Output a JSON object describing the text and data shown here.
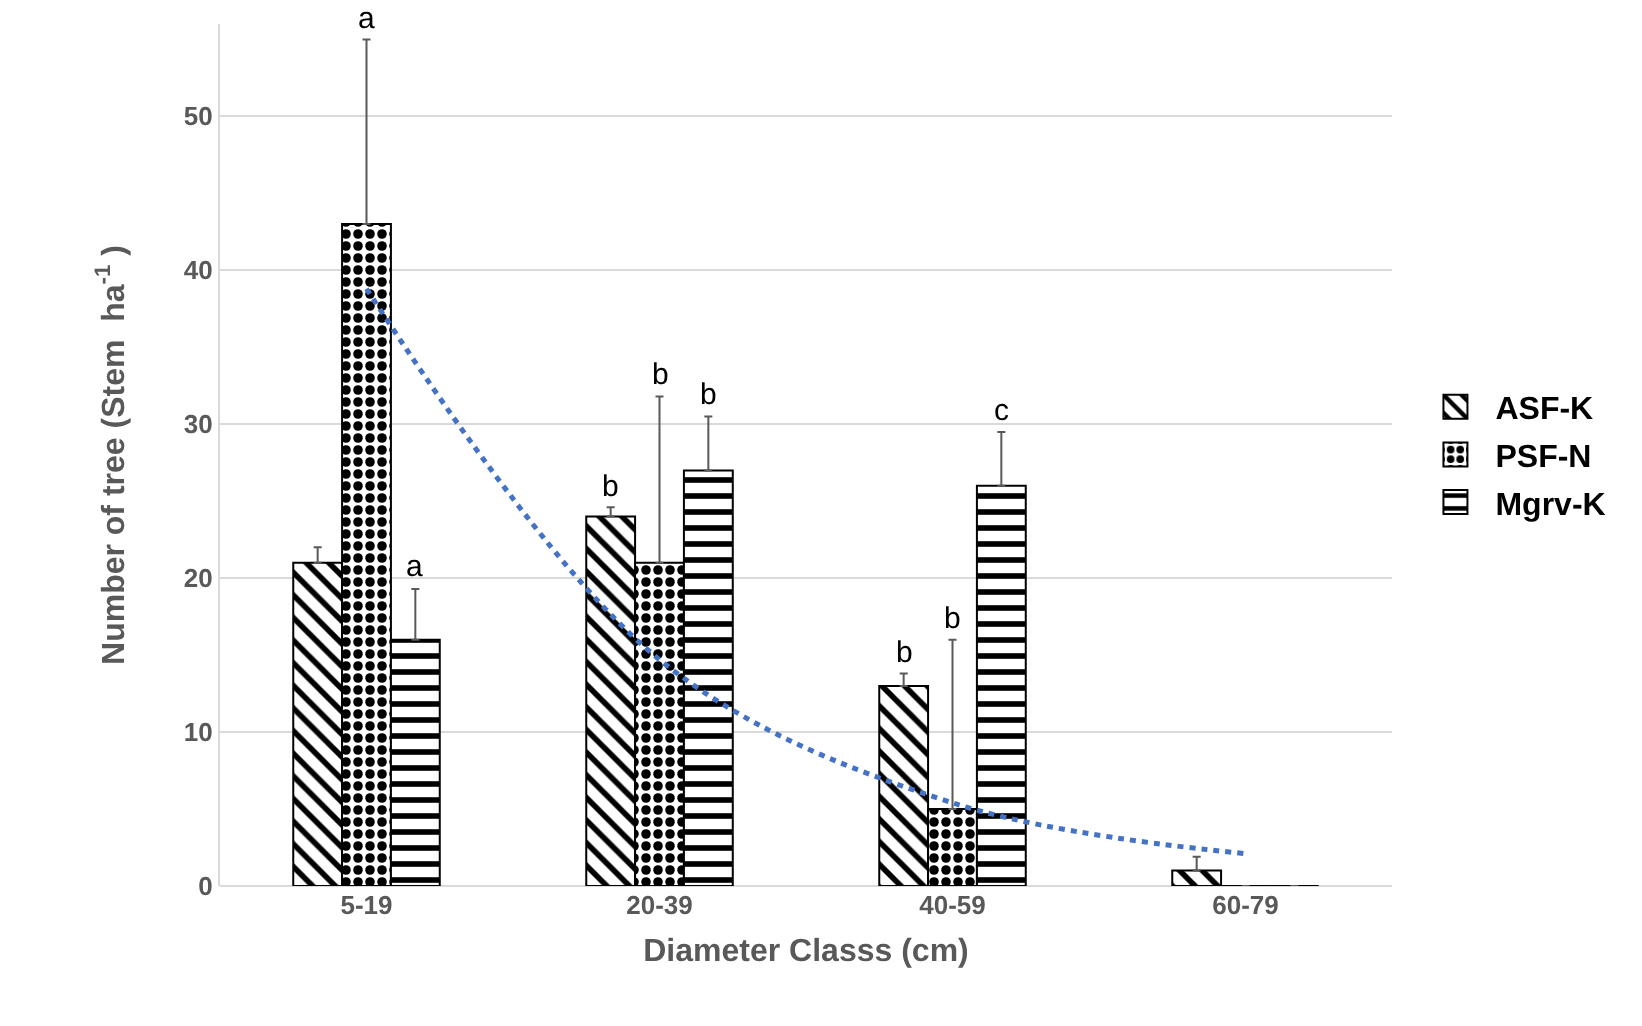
{
  "chart_data": {
    "type": "bar",
    "xlabel": "Diameter Classs (cm)",
    "ylabel": "Number of tree (Stem  ha$^{-1}$ )",
    "categories": [
      "5-19",
      "20-39",
      "40-59",
      "60-79"
    ],
    "series": [
      {
        "name": "ASF-K",
        "color": "#000000",
        "values": [
          21,
          24,
          13,
          1
        ],
        "value_labels": [
          null,
          "b",
          "b",
          null
        ],
        "errors": [
          [
            21,
            22
          ],
          [
            24,
            24.6
          ],
          [
            13,
            13.8
          ],
          [
            1,
            1.9
          ]
        ]
      },
      {
        "name": "PSF-N",
        "color": "#000000",
        "values": [
          43,
          21,
          5,
          0
        ],
        "errors": [
          [
            43,
            55
          ],
          [
            21,
            31.8
          ],
          [
            5,
            16
          ],
          null
        ]
      },
      {
        "name": "Mgrv-K",
        "color": "#000000",
        "values": [
          16,
          27,
          26,
          0
        ],
        "value_labels": [
          "a",
          "b",
          "c",
          null
        ],
        "errors": [
          [
            16,
            19.3
          ],
          [
            27,
            30.5
          ],
          [
            26,
            29.5
          ],
          null
        ]
      },
      {
        "type": "line",
        "color": "#4472c4",
        "line_style": "dotted",
        "values": [
          38.8,
          14.7,
          5.4,
          2.1
        ]
      }
    ],
    "annotations": [
      {
        "text": "a",
        "x": "5-19",
        "y": 55
      },
      {
        "text": "b",
        "x": "20-39",
        "y": 31.8
      },
      {
        "text": "b",
        "x": "40-59",
        "y": 16
      }
    ],
    "ylim": [
      0,
      56
    ],
    "yticks": [
      0,
      10,
      20,
      30,
      40,
      50
    ],
    "grid": "y",
    "legend": "right"
  }
}
